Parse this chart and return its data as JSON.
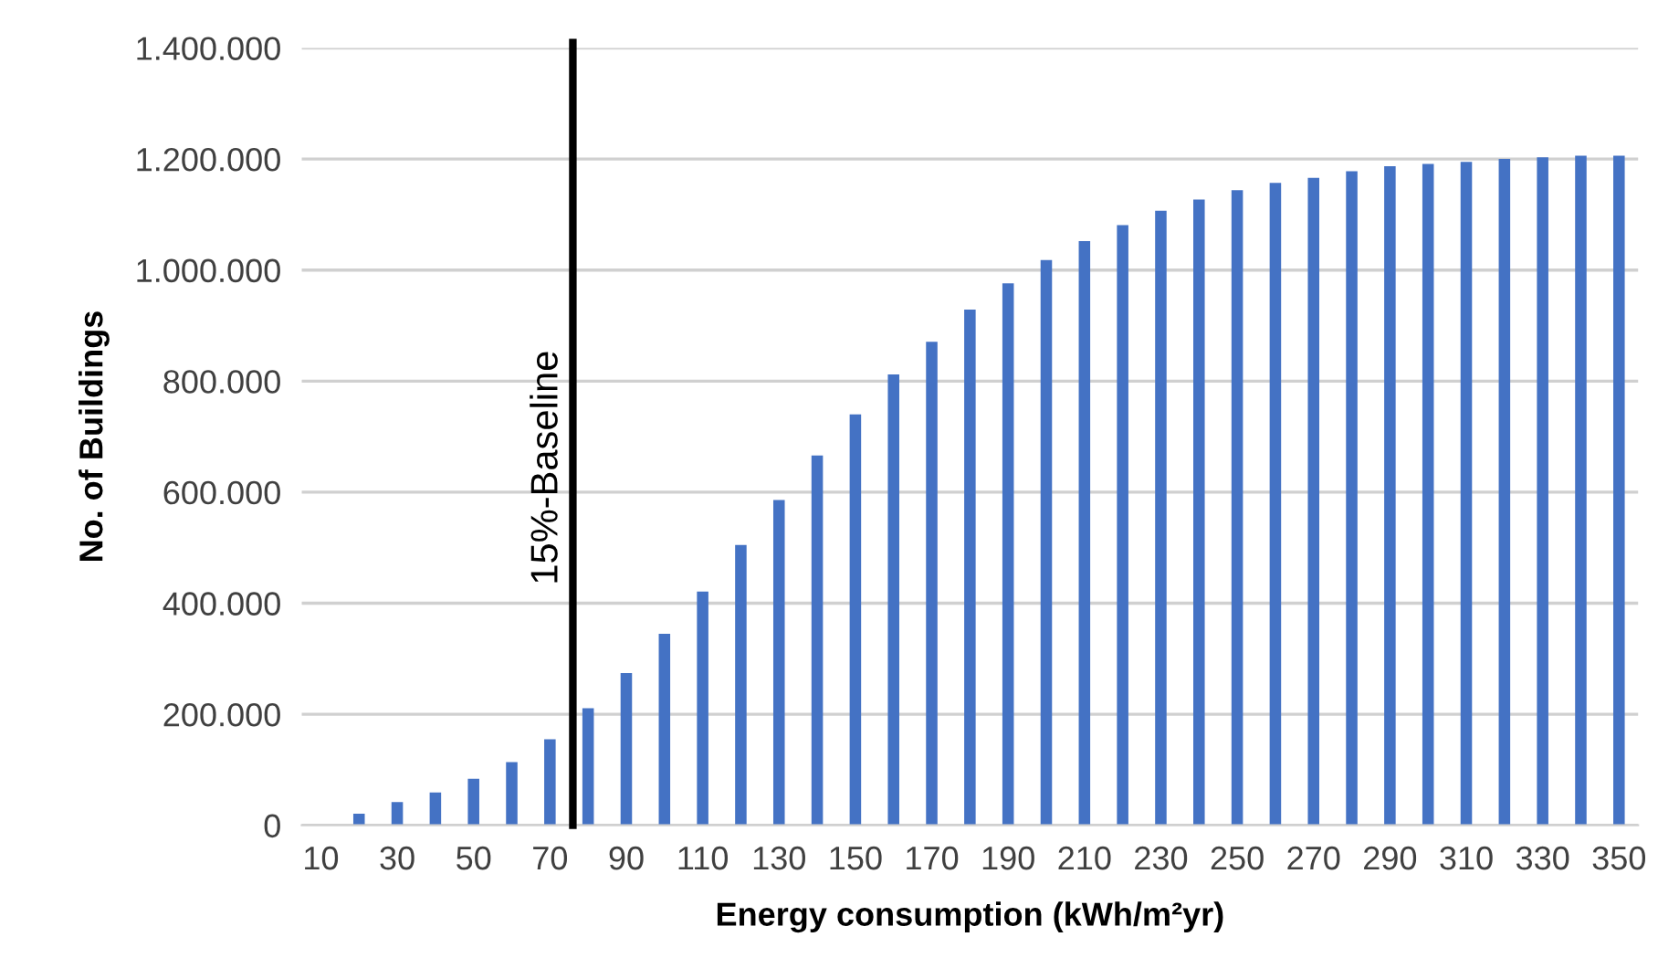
{
  "chart_data": {
    "type": "bar",
    "xlabel": "Energy consumption (kWh/m²yr)",
    "ylabel": "No. of Buildings",
    "x": [
      10,
      20,
      30,
      40,
      50,
      60,
      70,
      80,
      90,
      100,
      110,
      120,
      130,
      140,
      150,
      160,
      170,
      180,
      190,
      200,
      210,
      220,
      230,
      240,
      250,
      260,
      270,
      280,
      290,
      300,
      310,
      320,
      330,
      340,
      350
    ],
    "values": [
      0,
      21000,
      42000,
      59000,
      84000,
      114000,
      155000,
      211000,
      274000,
      345000,
      421000,
      505000,
      586000,
      666000,
      740000,
      812000,
      871000,
      929000,
      976000,
      1018000,
      1052000,
      1081000,
      1107000,
      1127000,
      1144000,
      1157000,
      1166000,
      1178000,
      1187000,
      1191000,
      1195000,
      1200000,
      1203000,
      1206000,
      1206000
    ],
    "color": "#4472c4",
    "xlim": [
      5,
      355
    ],
    "xticks": [
      10,
      30,
      50,
      70,
      90,
      110,
      130,
      150,
      170,
      190,
      210,
      230,
      250,
      270,
      290,
      310,
      330,
      350
    ],
    "ylim": [
      0,
      1400000
    ],
    "yticks": [
      {
        "value": 0,
        "label": "0"
      },
      {
        "value": 200000,
        "label": "200.000"
      },
      {
        "value": 400000,
        "label": "400.000"
      },
      {
        "value": 600000,
        "label": "600.000"
      },
      {
        "value": 800000,
        "label": "800.000"
      },
      {
        "value": 1000000,
        "label": "1.000.000"
      },
      {
        "value": 1200000,
        "label": "1.200.000"
      },
      {
        "value": 1400000,
        "label": "1.400.000"
      }
    ],
    "grid": "y",
    "legend": false,
    "ref_lines": [
      {
        "axis": "x",
        "value": 76,
        "label": "15%-Baseline",
        "color": "#000000",
        "line_style": "solid"
      }
    ]
  }
}
